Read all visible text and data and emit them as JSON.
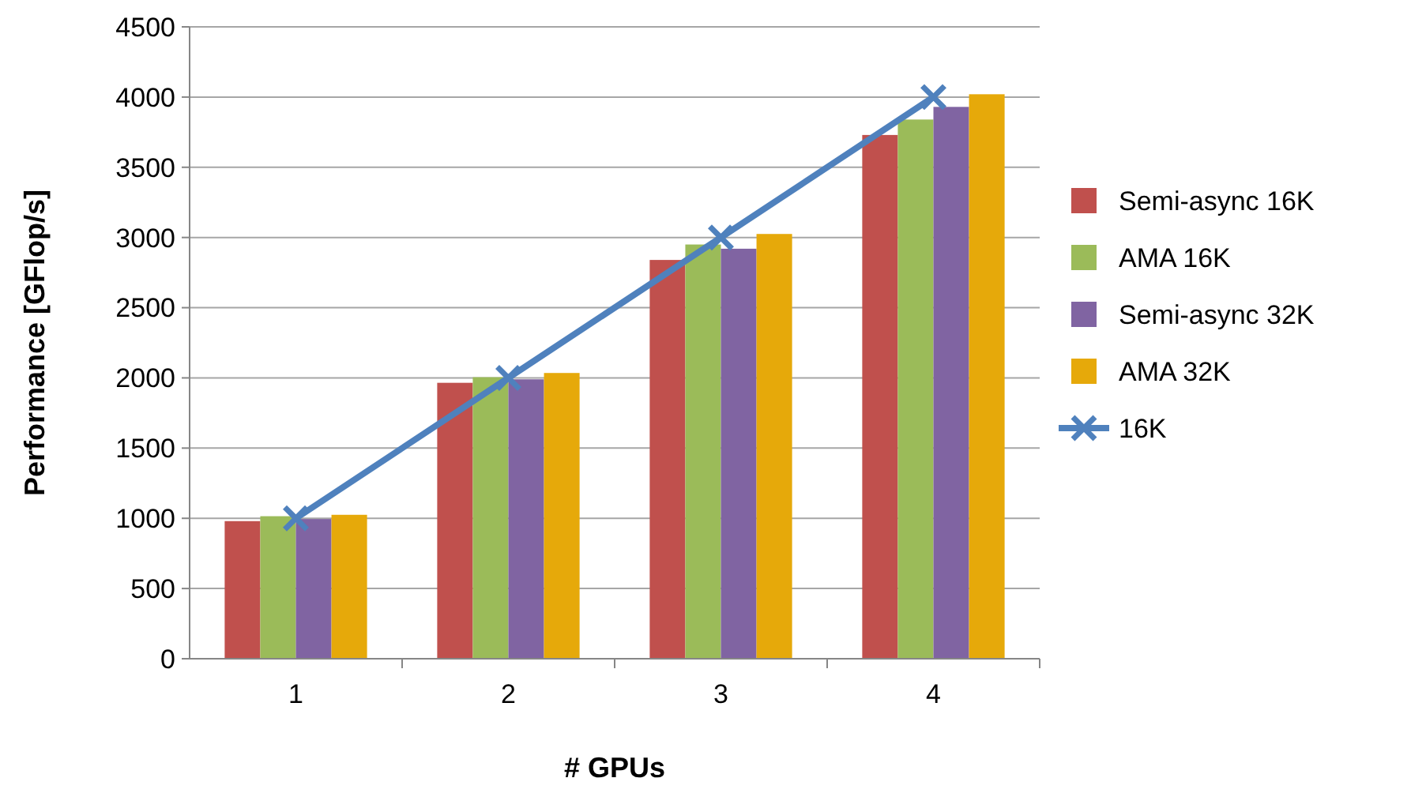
{
  "chart_data": {
    "type": "bar",
    "xlabel": "# GPUs",
    "ylabel": "Performance [GFlop/s]",
    "categories": [
      "1",
      "2",
      "3",
      "4"
    ],
    "series": [
      {
        "name": "Semi-async 16K",
        "color": "#c0504d",
        "values": [
          980,
          1965,
          2840,
          3730
        ]
      },
      {
        "name": "AMA 16K",
        "color": "#9bbb59",
        "values": [
          1015,
          2005,
          2950,
          3840
        ]
      },
      {
        "name": "Semi-async 32K",
        "color": "#8064a2",
        "values": [
          995,
          1990,
          2920,
          3930
        ]
      },
      {
        "name": "AMA 32K",
        "color": "#e6a90a",
        "values": [
          1025,
          2035,
          3025,
          4020
        ]
      },
      {
        "name": "16K",
        "type": "line",
        "color": "#4f81bd",
        "marker": "cross",
        "values": [
          1000,
          2000,
          3000,
          4000
        ]
      }
    ],
    "ylim": [
      0,
      4500
    ],
    "yticks": [
      0,
      500,
      1000,
      1500,
      2000,
      2500,
      3000,
      3500,
      4000,
      4500
    ],
    "grid": "y",
    "legend": "right"
  }
}
